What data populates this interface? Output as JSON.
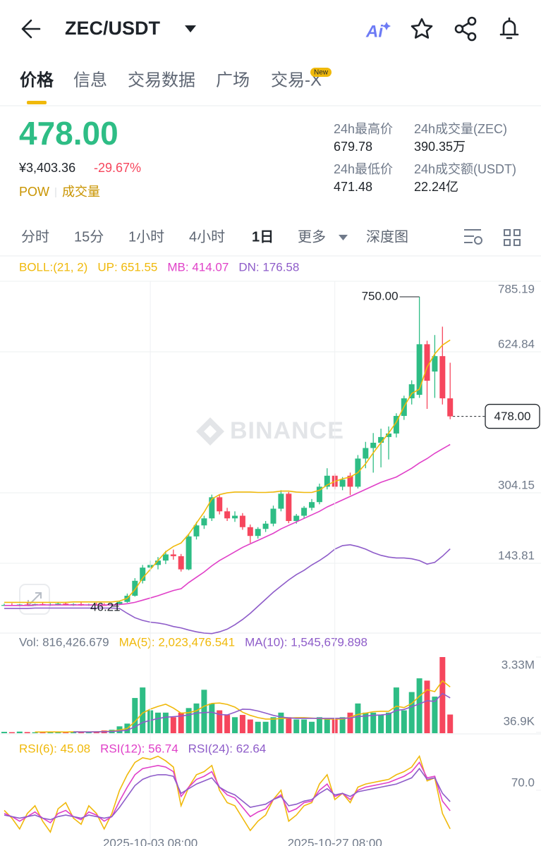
{
  "header": {
    "title": "ZEC/USDT",
    "ai_label": "Ai"
  },
  "tabs": [
    "价格",
    "信息",
    "交易数据",
    "广场",
    "交易-X"
  ],
  "tab_badge": "New",
  "price": {
    "last": "478.00",
    "cny": "¥3,403.36",
    "change": "-29.67%"
  },
  "tags": [
    "POW",
    "成交量"
  ],
  "stats": [
    {
      "label": "24h最高价",
      "value": "679.78"
    },
    {
      "label": "24h成交量(ZEC)",
      "value": "390.35万"
    },
    {
      "label": "24h最低价",
      "value": "471.48"
    },
    {
      "label": "24h成交额(USDT)",
      "value": "22.24亿"
    }
  ],
  "intervals": [
    "分时",
    "15分",
    "1小时",
    "4小时",
    "1日",
    "更多",
    "深度图"
  ],
  "chart_data": [
    {
      "type": "candlestick",
      "indicator": "BOLL:(21, 2)",
      "watermark": "BINANCE",
      "up_color": "#2ebd85",
      "down_color": "#f6465d",
      "open": [
        48,
        49,
        47,
        50,
        48,
        51,
        49,
        50,
        52,
        49,
        51,
        48,
        50,
        49,
        48,
        51,
        56,
        70,
        104,
        134,
        140,
        150,
        164,
        160,
        130,
        205,
        230,
        246,
        294,
        262,
        246,
        252,
        226,
        206,
        222,
        234,
        268,
        302,
        240,
        252,
        270,
        283,
        318,
        343,
        318,
        343,
        318,
        382,
        406,
        418,
        431,
        439,
        479,
        519,
        527,
        642,
        580,
        615,
        519
      ],
      "high": [
        52,
        53,
        51,
        54,
        52,
        55,
        53,
        54,
        56,
        53,
        55,
        52,
        54,
        53,
        52,
        58,
        75,
        110,
        140,
        150,
        158,
        172,
        175,
        165,
        210,
        238,
        252,
        300,
        300,
        270,
        262,
        258,
        232,
        226,
        240,
        275,
        310,
        306,
        256,
        274,
        290,
        325,
        360,
        348,
        340,
        350,
        390,
        420,
        440,
        450,
        455,
        485,
        525,
        560,
        750,
        650,
        663,
        682,
        600
      ],
      "low": [
        47,
        47,
        46.5,
        48,
        47,
        48,
        47,
        48,
        48,
        47,
        47,
        47,
        47,
        47,
        46.21,
        49,
        54,
        68,
        98,
        125,
        130,
        142,
        152,
        125,
        128,
        198,
        222,
        240,
        255,
        240,
        238,
        220,
        190,
        200,
        215,
        228,
        262,
        235,
        234,
        246,
        264,
        278,
        312,
        312,
        310,
        299,
        314,
        360,
        350,
        362,
        380,
        430,
        470,
        505,
        520,
        495,
        520,
        505,
        471.48
      ],
      "close": [
        49,
        47,
        50,
        48,
        51,
        49,
        50,
        52,
        49,
        51,
        48,
        50,
        49,
        48,
        51,
        56,
        70,
        104,
        134,
        140,
        150,
        164,
        160,
        130,
        205,
        230,
        246,
        294,
        262,
        246,
        252,
        226,
        206,
        222,
        234,
        268,
        302,
        240,
        252,
        270,
        283,
        318,
        343,
        318,
        334,
        318,
        382,
        406,
        418,
        431,
        439,
        479,
        519,
        551,
        642,
        559,
        615,
        519,
        478
      ],
      "series": [
        {
          "label": "UP: 651.55",
          "color": "#f0b90b",
          "values": [
            55,
            55,
            55,
            55,
            55,
            55,
            55,
            55,
            55,
            56,
            56,
            56,
            56,
            56,
            56,
            58,
            64,
            84,
            110,
            130,
            150,
            170,
            182,
            190,
            210,
            235,
            260,
            290,
            300,
            304,
            306,
            306,
            306,
            305,
            305,
            306,
            308,
            308,
            306,
            305,
            305,
            310,
            322,
            330,
            336,
            340,
            350,
            370,
            395,
            418,
            440,
            465,
            500,
            530,
            540,
            590,
            620,
            640,
            651.55
          ]
        },
        {
          "label": "MB: 414.07",
          "color": "#e040c8",
          "values": [
            48,
            48,
            48,
            48,
            49,
            49,
            49,
            49,
            49,
            49,
            49,
            49,
            49,
            49,
            49,
            50,
            52,
            55,
            60,
            65,
            70,
            76,
            82,
            86,
            100,
            112,
            124,
            138,
            150,
            160,
            170,
            180,
            188,
            196,
            204,
            212,
            222,
            230,
            238,
            246,
            254,
            262,
            272,
            280,
            288,
            296,
            304,
            312,
            320,
            328,
            334,
            340,
            350,
            360,
            372,
            382,
            394,
            404,
            414.07
          ]
        },
        {
          "label": "DN: 176.58",
          "color": "#8e5cc9",
          "values": [
            41,
            41,
            41,
            41,
            42,
            42,
            42,
            42,
            42,
            42,
            42,
            42,
            42,
            42,
            42,
            41,
            30,
            20,
            14,
            10,
            8,
            5,
            0,
            -3,
            -8,
            -12,
            -15,
            -16,
            -12,
            -6,
            4,
            16,
            30,
            46,
            62,
            78,
            92,
            106,
            118,
            128,
            140,
            150,
            162,
            176,
            184,
            186,
            182,
            176,
            168,
            162,
            158,
            156,
            156,
            154,
            150,
            142,
            146,
            160,
            176.58
          ]
        }
      ],
      "ylim": [
        -16.53,
        785.19
      ],
      "yticks": [
        785.19,
        624.84,
        304.15,
        143.81
      ],
      "grid": true,
      "last_price": {
        "value": 478,
        "label": "478.00"
      },
      "annotations": [
        {
          "value": 750,
          "label": "750.00"
        },
        {
          "value": 46.21,
          "label": "46.21"
        }
      ]
    },
    {
      "type": "bar",
      "legend": "Vol: 816,426.679",
      "values": [
        60000,
        45000,
        70000,
        50000,
        40000,
        55000,
        65000,
        48000,
        52000,
        70000,
        60000,
        45000,
        80000,
        120000,
        150000,
        300000,
        420000,
        1540000,
        2000000,
        1000000,
        900000,
        900000,
        700000,
        900000,
        1100000,
        1300000,
        1900000,
        1300000,
        1000000,
        800000,
        700000,
        800000,
        600000,
        500000,
        500000,
        700000,
        900000,
        700000,
        600000,
        600000,
        500000,
        700000,
        600000,
        600000,
        700000,
        900000,
        1300000,
        900000,
        900000,
        800000,
        900000,
        2000000,
        1000000,
        1800000,
        2400000,
        2300000,
        1600000,
        3330000,
        816426.679
      ],
      "series": [
        {
          "label": "MA(5): 2,023,476.541",
          "color": "#f0b90b",
          "values": [
            null,
            null,
            null,
            null,
            53000,
            52000,
            56000,
            54000,
            52000,
            58000,
            59000,
            55000,
            61000,
            75000,
            89000,
            139000,
            206000,
            506000,
            882000,
            1052000,
            1172000,
            1268000,
            1100000,
            880000,
            900000,
            980000,
            1180000,
            1300000,
            1320000,
            1260000,
            1140000,
            920000,
            780000,
            680000,
            620000,
            620000,
            640000,
            660000,
            680000,
            680000,
            660000,
            640000,
            620000,
            620000,
            620000,
            700000,
            820000,
            880000,
            940000,
            960000,
            960000,
            1180000,
            1120000,
            1300000,
            1620000,
            1900000,
            1820000,
            2290000,
            2023476.541
          ]
        },
        {
          "label": "MA(10): 1,545,679.898",
          "color": "#8e5cc9",
          "values": [
            null,
            null,
            null,
            null,
            null,
            null,
            null,
            null,
            null,
            55000,
            56000,
            55000,
            58000,
            64000,
            73000,
            98000,
            130000,
            280000,
            470000,
            560000,
            640000,
            700000,
            720000,
            750000,
            800000,
            880000,
            900000,
            920000,
            820000,
            800000,
            920000,
            1050000,
            1040000,
            970000,
            880000,
            780000,
            710000,
            670000,
            650000,
            650000,
            650000,
            650000,
            650000,
            650000,
            650000,
            670000,
            730000,
            750000,
            780000,
            800000,
            830000,
            1000000,
            1040000,
            1160000,
            1280000,
            1420000,
            1390000,
            1740000,
            1545679.898
          ]
        }
      ],
      "ylim": [
        0,
        3330000
      ],
      "yticks": [
        {
          "value": 3330000,
          "label": "3.33M"
        },
        {
          "value": 36900,
          "label": "36.9K"
        }
      ]
    },
    {
      "type": "line",
      "categories": [
        null,
        null,
        null,
        null,
        null,
        null,
        null,
        null,
        null,
        null,
        null,
        null,
        null,
        null,
        null,
        null,
        null,
        null,
        null,
        "2025-10-03 08:00",
        null,
        null,
        null,
        null,
        null,
        null,
        null,
        null,
        null,
        null,
        null,
        null,
        null,
        null,
        null,
        null,
        null,
        null,
        null,
        null,
        null,
        null,
        null,
        "2025-10-27 08:00",
        null,
        null,
        null,
        null,
        null,
        null,
        null,
        null,
        null,
        null,
        null,
        null,
        null,
        null,
        null
      ],
      "series": [
        {
          "label": "RSI(6): 45.08",
          "color": "#f0b90b",
          "values": [
            57,
            52,
            45,
            55,
            60,
            50,
            43,
            58,
            62,
            52,
            48,
            60,
            55,
            45,
            55,
            70,
            80,
            88,
            91,
            90,
            92,
            89,
            85,
            60,
            72,
            80,
            82,
            86,
            70,
            62,
            60,
            52,
            44,
            50,
            54,
            64,
            70,
            50,
            54,
            60,
            62,
            74,
            80,
            64,
            68,
            62,
            72,
            74,
            75,
            76,
            77,
            80,
            82,
            85,
            92,
            76,
            78,
            55,
            45.08
          ]
        },
        {
          "label": "RSI(12): 56.74",
          "color": "#e040c8",
          "values": [
            55,
            53,
            50,
            53,
            56,
            52,
            49,
            55,
            57,
            53,
            51,
            56,
            54,
            50,
            53,
            63,
            72,
            80,
            84,
            85,
            86,
            85,
            82,
            66,
            72,
            77,
            79,
            82,
            72,
            67,
            65,
            59,
            53,
            56,
            58,
            64,
            67,
            56,
            58,
            62,
            63,
            70,
            74,
            66,
            68,
            64,
            70,
            72,
            73,
            74,
            75,
            77,
            79,
            82,
            88,
            78,
            79,
            63,
            56.74
          ]
        },
        {
          "label": "RSI(24): 62.64",
          "color": "#8e5cc9",
          "values": [
            54,
            53,
            52,
            53,
            54,
            52,
            51,
            53,
            54,
            53,
            52,
            54,
            53,
            52,
            53,
            59,
            66,
            73,
            77,
            79,
            80,
            80,
            79,
            68,
            71,
            74,
            76,
            78,
            72,
            69,
            67,
            63,
            59,
            60,
            61,
            64,
            66,
            60,
            61,
            63,
            64,
            68,
            71,
            67,
            68,
            66,
            69,
            70,
            71,
            72,
            73,
            74,
            76,
            78,
            84,
            77,
            78,
            68,
            62.64
          ]
        }
      ],
      "ylim": [
        34,
        100
      ],
      "yticks": [
        {
          "value": 70,
          "label": "70.0"
        }
      ]
    }
  ]
}
